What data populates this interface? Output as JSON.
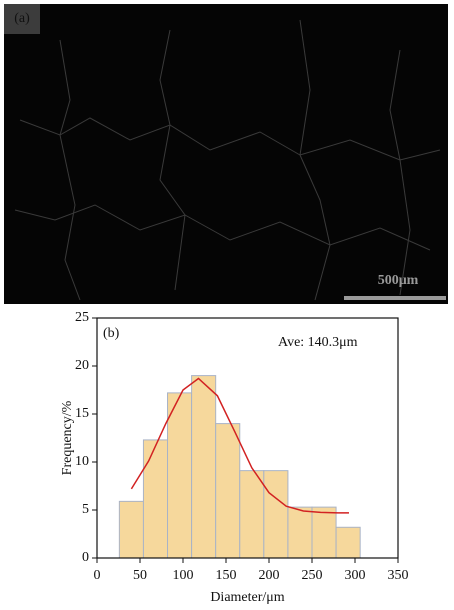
{
  "micrograph": {
    "label": "(a)",
    "scale_bar": "500μm"
  },
  "chart_data": {
    "type": "histogram",
    "panel_label": "(b)",
    "annotation": "Ave: 140.3μm",
    "xlabel": "Diameter/μm",
    "ylabel": "Frequency/%",
    "bins": [
      26,
      54,
      82,
      110,
      138,
      166,
      194,
      222,
      250,
      278,
      306
    ],
    "values": [
      5.9,
      12.3,
      17.2,
      19,
      14,
      9.1,
      9.1,
      5.3,
      5.3,
      3.2
    ],
    "color": "#f6d89c",
    "edgecolor": "#a9b3c6",
    "fit": {
      "color": "#d22222",
      "x": [
        40,
        60,
        80,
        100,
        118,
        140,
        160,
        180,
        200,
        220,
        240,
        260,
        280,
        293
      ],
      "values": [
        7.2,
        10.1,
        14.0,
        17.5,
        18.7,
        16.9,
        13.2,
        9.4,
        6.8,
        5.4,
        4.9,
        4.75,
        4.7,
        4.7
      ]
    },
    "xlim": [
      0,
      350
    ],
    "xticks": [
      0,
      50,
      100,
      150,
      200,
      250,
      300,
      350
    ],
    "ylim": [
      0,
      25
    ],
    "yticks": [
      0,
      5,
      10,
      15,
      20,
      25
    ]
  }
}
